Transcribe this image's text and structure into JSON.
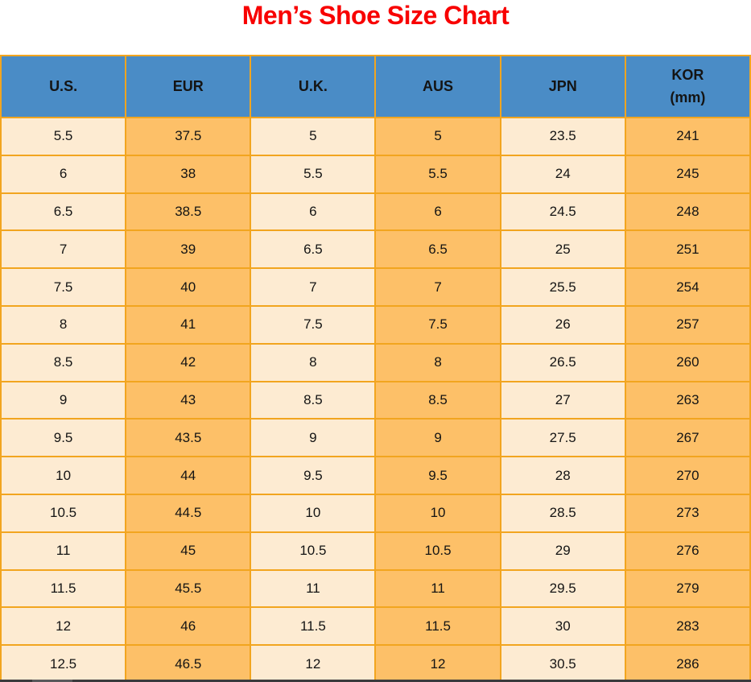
{
  "chart_data": {
    "type": "table",
    "title": "Men’s Shoe Size Chart",
    "columns": [
      "U.S.",
      "EUR",
      "U.K.",
      "AUS",
      "JPN",
      "KOR (mm)"
    ],
    "rows": [
      [
        "5.5",
        "37.5",
        "5",
        "5",
        "23.5",
        "241"
      ],
      [
        "6",
        "38",
        "5.5",
        "5.5",
        "24",
        "245"
      ],
      [
        "6.5",
        "38.5",
        "6",
        "6",
        "24.5",
        "248"
      ],
      [
        "7",
        "39",
        "6.5",
        "6.5",
        "25",
        "251"
      ],
      [
        "7.5",
        "40",
        "7",
        "7",
        "25.5",
        "254"
      ],
      [
        "8",
        "41",
        "7.5",
        "7.5",
        "26",
        "257"
      ],
      [
        "8.5",
        "42",
        "8",
        "8",
        "26.5",
        "260"
      ],
      [
        "9",
        "43",
        "8.5",
        "8.5",
        "27",
        "263"
      ],
      [
        "9.5",
        "43.5",
        "9",
        "9",
        "27.5",
        "267"
      ],
      [
        "10",
        "44",
        "9.5",
        "9.5",
        "28",
        "270"
      ],
      [
        "10.5",
        "44.5",
        "10",
        "10",
        "28.5",
        "273"
      ],
      [
        "11",
        "45",
        "10.5",
        "10.5",
        "29",
        "276"
      ],
      [
        "11.5",
        "45.5",
        "11",
        "11",
        "29.5",
        "279"
      ],
      [
        "12",
        "46",
        "11.5",
        "11.5",
        "30",
        "283"
      ],
      [
        "12.5",
        "46.5",
        "12",
        "12",
        "30.5",
        "286"
      ]
    ]
  },
  "header": {
    "columns": [
      {
        "key": "us",
        "label": "U.S."
      },
      {
        "key": "eur",
        "label": "EUR"
      },
      {
        "key": "uk",
        "label": "U.K."
      },
      {
        "key": "aus",
        "label": "AUS"
      },
      {
        "key": "jpn",
        "label": "JPN"
      },
      {
        "key": "kor",
        "label": "KOR",
        "sub": "(mm)"
      }
    ]
  },
  "colors": {
    "title_red": "#f80000",
    "header_blue": "#4a8cc6",
    "cell_cream": "#fdebd2",
    "cell_orange": "#fdc068",
    "border_orange": "#f2a51f",
    "text_black": "#141414",
    "window_edge_dark": "#3a3a3c",
    "window_edge_light": "#59595b"
  }
}
